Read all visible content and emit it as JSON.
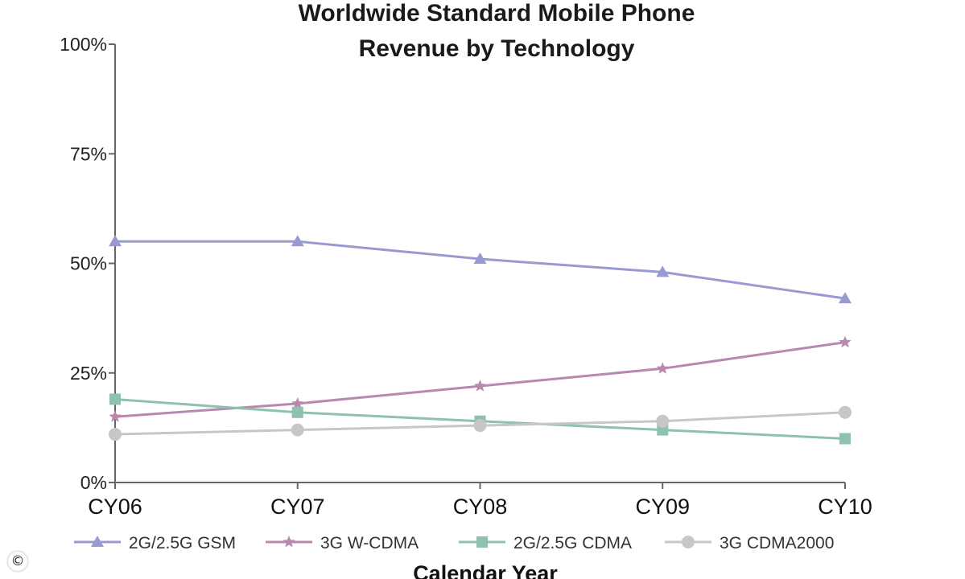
{
  "chart_data": {
    "type": "line",
    "title": [
      "Worldwide Standard Mobile Phone",
      "Revenue by Technology"
    ],
    "xlabel": "Calendar Year",
    "ylabel": "",
    "categories": [
      "CY06",
      "CY07",
      "CY08",
      "CY09",
      "CY10"
    ],
    "ylim": [
      0,
      100
    ],
    "yticks": [
      "0%",
      "25%",
      "50%",
      "75%",
      "100%"
    ],
    "ytick_values": [
      0,
      25,
      50,
      75,
      100
    ],
    "grid": false,
    "legend_position": "bottom",
    "series": [
      {
        "name": "2G/2.5G GSM",
        "marker": "triangle",
        "color": "#9a9ad2",
        "values": [
          55,
          55,
          51,
          48,
          42
        ]
      },
      {
        "name": "3G W-CDMA",
        "marker": "star",
        "color": "#b889ad",
        "values": [
          15,
          18,
          22,
          26,
          32
        ]
      },
      {
        "name": "2G/2.5G CDMA",
        "marker": "square",
        "color": "#8ec1ae",
        "values": [
          19,
          16,
          14,
          12,
          10
        ]
      },
      {
        "name": "3G CDMA2000",
        "marker": "circle",
        "color": "#c7c7c7",
        "values": [
          11,
          12,
          13,
          14,
          16
        ]
      }
    ]
  },
  "copyright_symbol": "©"
}
